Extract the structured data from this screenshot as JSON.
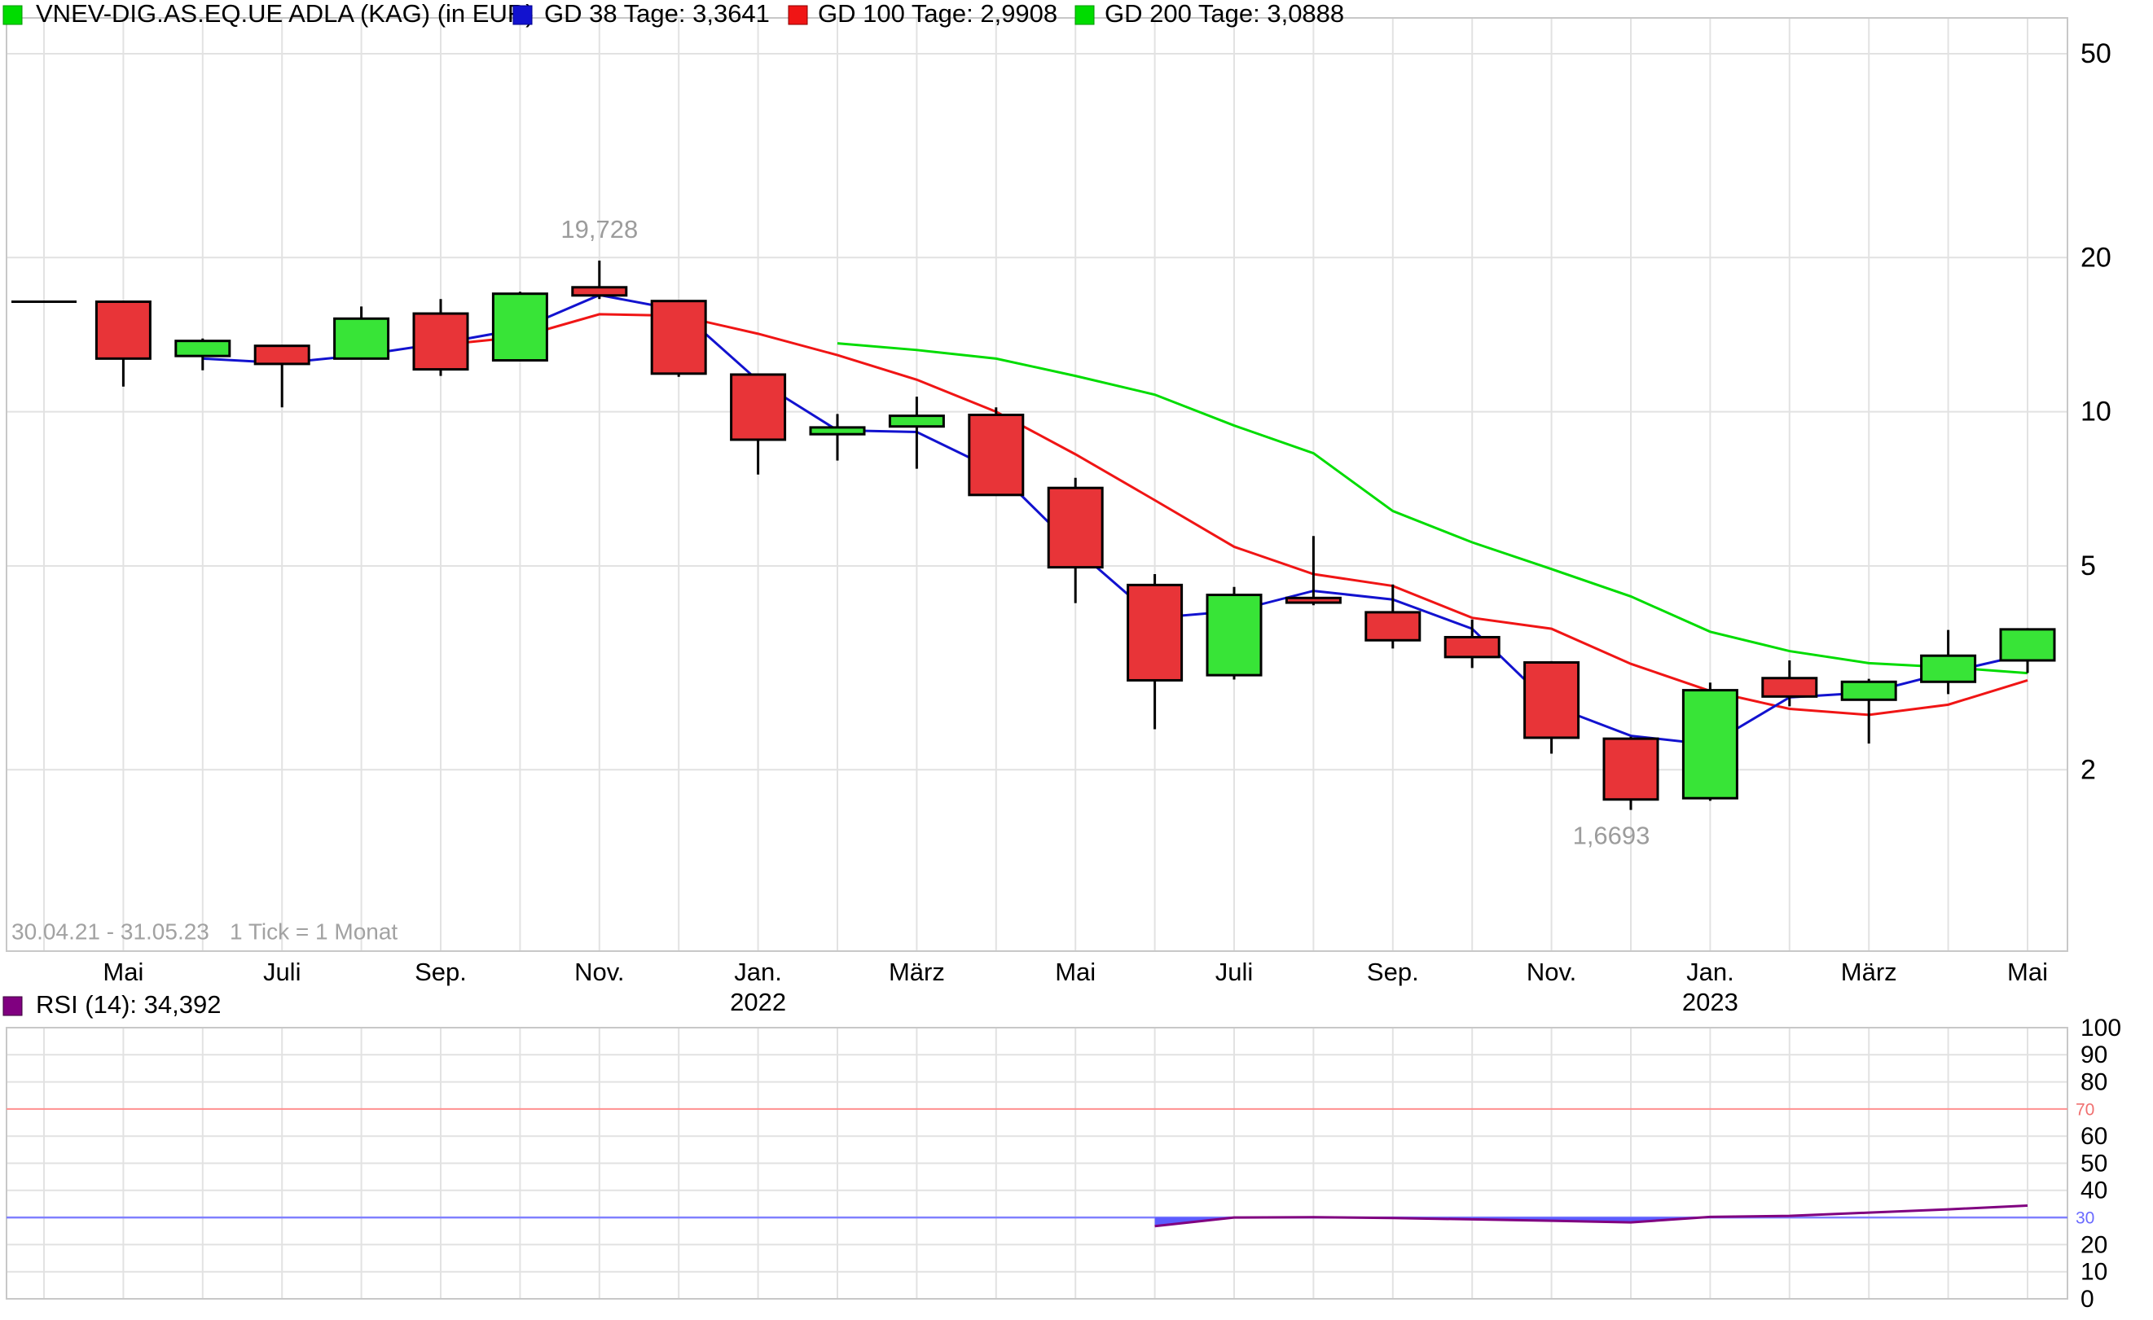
{
  "legend": {
    "title": "VNEV-DIG.AS.EQ.UE ADLA (KAG) (in EUR)",
    "items": [
      {
        "label": "GD 38 Tage: 3,3641"
      },
      {
        "label": "GD 100 Tage: 2,9908"
      },
      {
        "label": "GD 200 Tage: 3,0888"
      }
    ]
  },
  "footer": {
    "range": "30.04.21 - 31.05.23",
    "tick": "1 Tick = 1 Monat"
  },
  "rsi_legend": {
    "label": "RSI (14): 34,392"
  },
  "colors": {
    "title_marker": "#00dc00",
    "gd38": "#1212cf",
    "gd100": "#f01515",
    "gd200": "#00dc00",
    "candle_up": "#38e437",
    "candle_down": "#e83438",
    "candle_border": "#000000",
    "rsi": "#800080",
    "rsi_fill": "#5c5cff",
    "overbought_line": "#ff9090",
    "oversold_line": "#8080ff",
    "overbought_label": "#f07070",
    "oversold_label": "#6a6aff",
    "grid": "#e2e2e2",
    "border": "#c8c8c8",
    "annotation": "#9c9c9c",
    "axis_text": "#000000",
    "footer_text": "#a2a2a2"
  },
  "chart_data": [
    {
      "type": "candlestick",
      "title": "VNEV-DIG.AS.EQ.UE ADLA (KAG) (in EUR)",
      "y_scale": "log",
      "y_ticks": [
        50,
        20,
        10,
        5,
        2
      ],
      "ylim": [
        0.9,
        58
      ],
      "grid": true,
      "x_ticks": [
        {
          "i": 1,
          "label": "Mai"
        },
        {
          "i": 3,
          "label": "Juli"
        },
        {
          "i": 5,
          "label": "Sep."
        },
        {
          "i": 7,
          "label": "Nov."
        },
        {
          "i": 9,
          "label": "Jan.",
          "year": "2022"
        },
        {
          "i": 11,
          "label": "März"
        },
        {
          "i": 13,
          "label": "Mai"
        },
        {
          "i": 15,
          "label": "Juli"
        },
        {
          "i": 17,
          "label": "Sep."
        },
        {
          "i": 19,
          "label": "Nov."
        },
        {
          "i": 21,
          "label": "Jan.",
          "year": "2023"
        },
        {
          "i": 23,
          "label": "März"
        },
        {
          "i": 25,
          "label": "Mai"
        }
      ],
      "annotations": [
        {
          "i": 7,
          "text": "19,728",
          "value": 19.728,
          "pos": "above",
          "dx": 0
        },
        {
          "i": 20,
          "text": "1,6693",
          "value": 1.6693,
          "pos": "below",
          "dx": -24
        }
      ],
      "candles": [
        {
          "m": "2021-04",
          "o": 16.4,
          "h": 16.45,
          "l": 16.35,
          "c": 16.4
        },
        {
          "m": "2021-05",
          "o": 16.4,
          "h": 16.45,
          "l": 11.2,
          "c": 12.7
        },
        {
          "m": "2021-06",
          "o": 12.85,
          "h": 13.9,
          "l": 12.05,
          "c": 13.75
        },
        {
          "m": "2021-07",
          "o": 13.45,
          "h": 13.5,
          "l": 10.2,
          "c": 12.4
        },
        {
          "m": "2021-08",
          "o": 12.7,
          "h": 16.05,
          "l": 12.65,
          "c": 15.2
        },
        {
          "m": "2021-09",
          "o": 15.55,
          "h": 16.6,
          "l": 11.75,
          "c": 12.1
        },
        {
          "m": "2021-10",
          "o": 12.6,
          "h": 17.15,
          "l": 12.55,
          "c": 17.0
        },
        {
          "m": "2021-11",
          "o": 17.5,
          "h": 19.728,
          "l": 16.6,
          "c": 16.87
        },
        {
          "m": "2021-12",
          "o": 16.45,
          "h": 16.5,
          "l": 11.7,
          "c": 11.87
        },
        {
          "m": "2022-01",
          "o": 11.82,
          "h": 11.85,
          "l": 7.54,
          "c": 8.82
        },
        {
          "m": "2022-02",
          "o": 9.04,
          "h": 9.9,
          "l": 8.03,
          "c": 9.32
        },
        {
          "m": "2022-03",
          "o": 9.36,
          "h": 10.7,
          "l": 7.74,
          "c": 9.82
        },
        {
          "m": "2022-04",
          "o": 9.86,
          "h": 10.2,
          "l": 6.85,
          "c": 6.88
        },
        {
          "m": "2022-05",
          "o": 7.1,
          "h": 7.43,
          "l": 4.23,
          "c": 4.97
        },
        {
          "m": "2022-06",
          "o": 4.59,
          "h": 4.82,
          "l": 2.4,
          "c": 2.99
        },
        {
          "m": "2022-07",
          "o": 3.06,
          "h": 4.55,
          "l": 3.0,
          "c": 4.39
        },
        {
          "m": "2022-08",
          "o": 4.33,
          "h": 5.72,
          "l": 4.19,
          "c": 4.24
        },
        {
          "m": "2022-09",
          "o": 4.06,
          "h": 4.6,
          "l": 3.45,
          "c": 3.58
        },
        {
          "m": "2022-10",
          "o": 3.63,
          "h": 3.93,
          "l": 3.16,
          "c": 3.32
        },
        {
          "m": "2022-11",
          "o": 3.24,
          "h": 3.26,
          "l": 2.15,
          "c": 2.31
        },
        {
          "m": "2022-12",
          "o": 2.3,
          "h": 2.32,
          "l": 1.6693,
          "c": 1.75
        },
        {
          "m": "2023-01",
          "o": 1.76,
          "h": 2.96,
          "l": 1.74,
          "c": 2.86
        },
        {
          "m": "2023-02",
          "o": 3.02,
          "h": 3.27,
          "l": 2.66,
          "c": 2.78
        },
        {
          "m": "2023-03",
          "o": 2.74,
          "h": 3.01,
          "l": 2.25,
          "c": 2.97
        },
        {
          "m": "2023-04",
          "o": 2.97,
          "h": 3.75,
          "l": 2.81,
          "c": 3.34
        },
        {
          "m": "2023-05",
          "o": 3.27,
          "h": 3.78,
          "l": 3.09,
          "c": 3.76
        }
      ],
      "series": [
        {
          "name": "GD 38 Tage",
          "key": "gd38",
          "last_value": 3.3641,
          "start": 2,
          "values": [
            12.7,
            12.45,
            12.9,
            13.6,
            14.5,
            16.9,
            15.8,
            11.5,
            9.2,
            9.13,
            7.68,
            5.4,
            3.96,
            4.08,
            4.47,
            4.3,
            3.77,
            2.67,
            2.33,
            2.24,
            2.77,
            2.83,
            3.1,
            3.3641
          ]
        },
        {
          "name": "GD 100 Tage",
          "key": "gd100",
          "last_value": 2.9908,
          "start": 5,
          "values": [
            13.5,
            14.0,
            15.5,
            15.4,
            14.2,
            12.9,
            11.55,
            10.0,
            8.26,
            6.72,
            5.45,
            4.82,
            4.57,
            3.96,
            3.77,
            3.22,
            2.85,
            2.63,
            2.56,
            2.68,
            2.9908
          ]
        },
        {
          "name": "GD 200 Tage",
          "key": "gd200",
          "last_value": 3.0888,
          "start": 10,
          "values": [
            13.6,
            13.2,
            12.7,
            11.75,
            10.8,
            9.4,
            8.3,
            6.4,
            5.56,
            4.93,
            4.36,
            3.72,
            3.41,
            3.23,
            3.17,
            3.0888
          ]
        }
      ]
    },
    {
      "type": "line",
      "name": "RSI (14)",
      "last_value": 34.392,
      "y_ticks": [
        100,
        90,
        80,
        70,
        60,
        50,
        40,
        30,
        20,
        10,
        0
      ],
      "overbought": 70,
      "oversold": 30,
      "grid": true,
      "start": 14,
      "values": [
        26.8,
        30.0,
        30.1,
        29.8,
        29.3,
        28.8,
        28.2,
        30.2,
        30.6,
        31.8,
        33.0,
        34.392
      ]
    }
  ]
}
